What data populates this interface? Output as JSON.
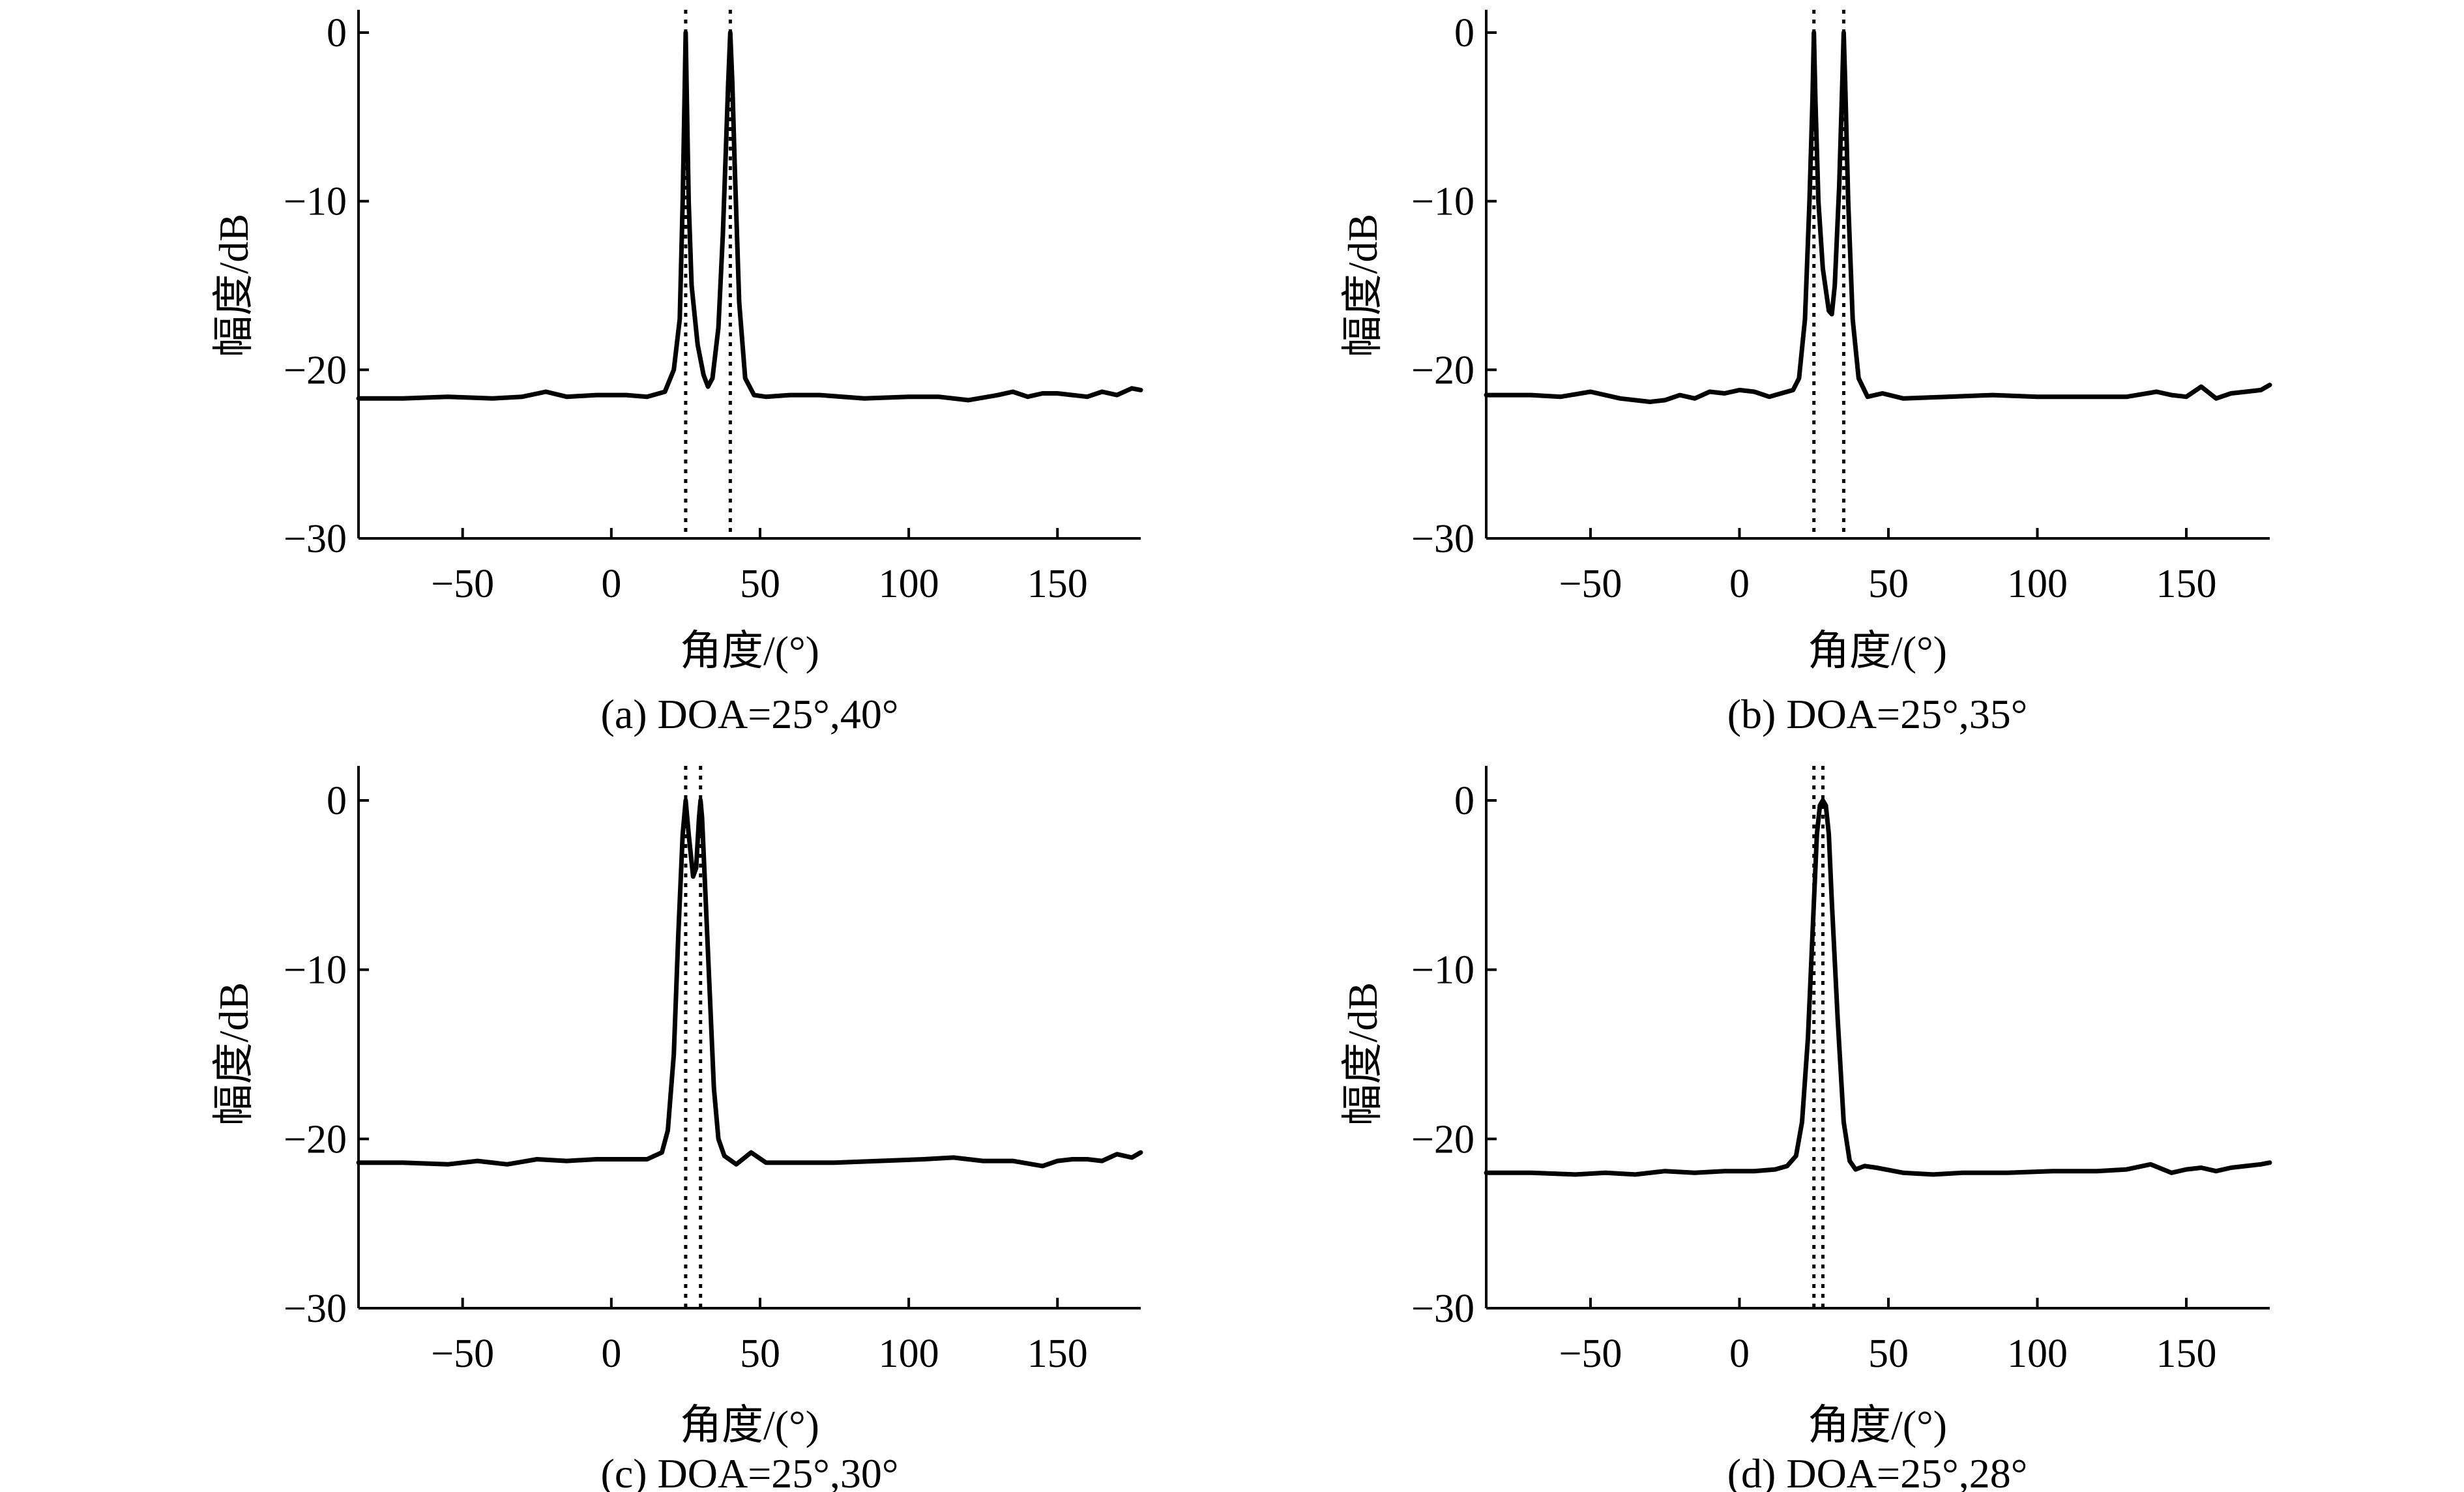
{
  "chart_data": [
    {
      "id": "a",
      "type": "line",
      "caption": "(a) DOA=25°,40°",
      "xlabel": "角度/(°)",
      "ylabel": "幅度/dB",
      "xlim": [
        -85,
        178
      ],
      "ylim": [
        -30,
        1.5
      ],
      "xticks": [
        -50,
        0,
        50,
        100,
        150
      ],
      "xtick_labels": [
        "−50",
        "0",
        "50",
        "100",
        "150"
      ],
      "yticks": [
        0,
        -10,
        -20,
        -30
      ],
      "ytick_labels": [
        "0",
        "−10",
        "−20",
        "−30"
      ],
      "doa_lines": [
        25,
        40
      ],
      "series": [
        {
          "x": [
            -85,
            -70,
            -55,
            -40,
            -30,
            -22,
            -15,
            -5,
            5,
            12,
            18,
            21,
            23,
            24,
            24.6,
            25,
            25.4,
            26,
            27,
            29,
            31,
            32.5,
            34,
            36,
            37.5,
            38.5,
            39.3,
            40,
            40.7,
            41.5,
            43,
            45,
            48,
            52,
            60,
            70,
            85,
            100,
            110,
            120,
            130,
            135,
            140,
            145,
            150,
            155,
            160,
            165,
            170,
            175,
            178
          ],
          "y": [
            -21.7,
            -21.7,
            -21.6,
            -21.7,
            -21.6,
            -21.3,
            -21.6,
            -21.5,
            -21.5,
            -21.6,
            -21.3,
            -20,
            -17,
            -10,
            -4,
            0,
            -4,
            -10,
            -15,
            -18.5,
            -20.3,
            -21,
            -20.5,
            -17.5,
            -12,
            -7,
            -3,
            0,
            -3,
            -8,
            -16,
            -20.5,
            -21.5,
            -21.6,
            -21.5,
            -21.5,
            -21.7,
            -21.6,
            -21.6,
            -21.8,
            -21.5,
            -21.3,
            -21.6,
            -21.4,
            -21.4,
            -21.5,
            -21.6,
            -21.3,
            -21.5,
            -21.1,
            -21.2
          ]
        }
      ]
    },
    {
      "id": "b",
      "type": "line",
      "caption": "(b) DOA=25°,35°",
      "xlabel": "角度/(°)",
      "ylabel": "幅度/dB",
      "xlim": [
        -85,
        178
      ],
      "ylim": [
        -30,
        1.5
      ],
      "xticks": [
        -50,
        0,
        50,
        100,
        150
      ],
      "xtick_labels": [
        "−50",
        "0",
        "50",
        "100",
        "150"
      ],
      "yticks": [
        0,
        -10,
        -20,
        -30
      ],
      "ytick_labels": [
        "0",
        "−10",
        "−20",
        "−30"
      ],
      "doa_lines": [
        25,
        35
      ],
      "series": [
        {
          "x": [
            -85,
            -70,
            -60,
            -50,
            -40,
            -30,
            -25,
            -20,
            -15,
            -10,
            -5,
            0,
            5,
            10,
            14,
            18,
            20,
            22,
            23.5,
            24.5,
            25,
            25.5,
            26.5,
            28,
            30,
            31,
            32,
            33.5,
            34.5,
            35,
            35.5,
            36.5,
            38,
            40,
            43,
            48,
            55,
            70,
            85,
            100,
            115,
            130,
            140,
            145,
            150,
            155,
            160,
            165,
            170,
            175,
            178
          ],
          "y": [
            -21.5,
            -21.5,
            -21.6,
            -21.3,
            -21.7,
            -21.9,
            -21.8,
            -21.5,
            -21.7,
            -21.3,
            -21.4,
            -21.2,
            -21.3,
            -21.6,
            -21.4,
            -21.2,
            -20.5,
            -17,
            -10,
            -4,
            0,
            -4,
            -10,
            -14,
            -16.5,
            -16.7,
            -15,
            -9,
            -3,
            0,
            -3,
            -10,
            -17,
            -20.5,
            -21.6,
            -21.4,
            -21.7,
            -21.6,
            -21.5,
            -21.6,
            -21.6,
            -21.6,
            -21.3,
            -21.5,
            -21.6,
            -21,
            -21.7,
            -21.4,
            -21.3,
            -21.2,
            -20.9
          ]
        }
      ]
    },
    {
      "id": "c",
      "type": "line",
      "caption": "(c) DOA=25°,30°",
      "xlabel": "角度/(°)",
      "ylabel": "幅度/dB",
      "xlim": [
        -85,
        178
      ],
      "ylim": [
        -30,
        1.5
      ],
      "xticks": [
        -50,
        0,
        50,
        100,
        150
      ],
      "xtick_labels": [
        "−50",
        "0",
        "50",
        "100",
        "150"
      ],
      "yticks": [
        0,
        -10,
        -20,
        -30
      ],
      "ytick_labels": [
        "0",
        "−10",
        "−20",
        "−30"
      ],
      "doa_lines": [
        25,
        30
      ],
      "series": [
        {
          "x": [
            -85,
            -70,
            -55,
            -45,
            -35,
            -25,
            -15,
            -5,
            5,
            12,
            17,
            19,
            21,
            22.5,
            24,
            25,
            26,
            27.5,
            28.5,
            29.5,
            30,
            30.5,
            31.5,
            33,
            34.5,
            36,
            38,
            42,
            47,
            52,
            60,
            75,
            90,
            105,
            115,
            125,
            135,
            145,
            150,
            155,
            160,
            165,
            170,
            175,
            178
          ],
          "y": [
            -21.4,
            -21.4,
            -21.5,
            -21.3,
            -21.5,
            -21.2,
            -21.3,
            -21.2,
            -21.2,
            -21.2,
            -20.8,
            -19.5,
            -15,
            -8,
            -2,
            0,
            -2,
            -4.5,
            -4,
            -1,
            0,
            -1,
            -5,
            -11,
            -17,
            -20,
            -21,
            -21.5,
            -20.8,
            -21.4,
            -21.4,
            -21.4,
            -21.3,
            -21.2,
            -21.1,
            -21.3,
            -21.3,
            -21.6,
            -21.3,
            -21.2,
            -21.2,
            -21.3,
            -20.9,
            -21.1,
            -20.8
          ]
        }
      ]
    },
    {
      "id": "d",
      "type": "line",
      "caption": "(d) DOA=25°,28°",
      "xlabel": "角度/(°)",
      "ylabel": "幅度/dB",
      "xlim": [
        -85,
        178
      ],
      "ylim": [
        -30,
        1.5
      ],
      "xticks": [
        -50,
        0,
        50,
        100,
        150
      ],
      "xtick_labels": [
        "−50",
        "0",
        "50",
        "100",
        "150"
      ],
      "yticks": [
        0,
        -10,
        -20,
        -30
      ],
      "ytick_labels": [
        "0",
        "−10",
        "−20",
        "−30"
      ],
      "doa_lines": [
        25,
        28
      ],
      "series": [
        {
          "x": [
            -85,
            -70,
            -55,
            -45,
            -35,
            -25,
            -15,
            -5,
            5,
            12,
            16,
            19,
            21,
            23,
            25,
            26,
            27,
            28,
            29,
            30,
            31,
            33,
            35,
            37,
            39,
            42,
            46,
            55,
            65,
            75,
            90,
            105,
            120,
            130,
            138,
            145,
            150,
            155,
            160,
            165,
            170,
            175,
            178
          ],
          "y": [
            -22,
            -22,
            -22.1,
            -22,
            -22.1,
            -21.9,
            -22,
            -21.9,
            -21.9,
            -21.8,
            -21.6,
            -21,
            -19,
            -14,
            -6,
            -2,
            -0.3,
            0,
            -0.3,
            -2,
            -6,
            -13,
            -19,
            -21.3,
            -21.8,
            -21.6,
            -21.7,
            -22,
            -22.1,
            -22,
            -22,
            -21.9,
            -21.9,
            -21.8,
            -21.5,
            -22,
            -21.8,
            -21.7,
            -21.9,
            -21.7,
            -21.6,
            -21.5,
            -21.4
          ]
        }
      ]
    }
  ]
}
